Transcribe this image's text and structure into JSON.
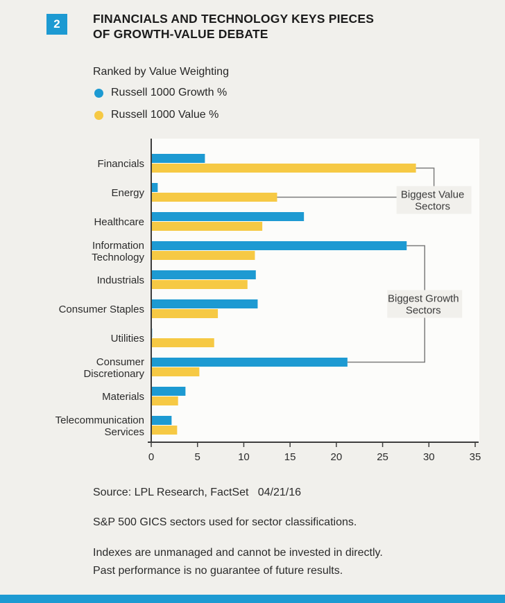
{
  "colors": {
    "accent_blue": "#1d9ad2",
    "value_yellow": "#f6c944",
    "page_background": "#f1f0ec",
    "plot_background": "#fcfcfa",
    "axis": "#3d3d3d",
    "bracket": "#7c7c7c"
  },
  "page": {
    "figure_number": "2",
    "title_line1": "FINANCIALS AND TECHNOLOGY KEYS PIECES",
    "title_line2": "OF GROWTH-VALUE DEBATE",
    "subtitle": "Ranked by Value Weighting"
  },
  "legend": [
    {
      "label": "Russell 1000 Growth %",
      "color": "#1d9ad2"
    },
    {
      "label": "Russell 1000 Value %",
      "color": "#f6c944"
    }
  ],
  "footer": {
    "source": "Source: LPL Research, FactSet   04/21/16",
    "note1": "S&P 500 GICS sectors used for sector classifications.",
    "note2": "Indexes are unmanaged and cannot be invested in directly.",
    "note3": "Past performance is no guarantee of future results."
  },
  "chart_data": {
    "type": "bar",
    "orientation": "horizontal",
    "title": "Ranked by Value Weighting",
    "xlabel": "",
    "ylabel": "",
    "xlim": [
      0,
      35
    ],
    "xticks": [
      0,
      5,
      10,
      15,
      20,
      25,
      30,
      35
    ],
    "grid": false,
    "legend_position": "top-left",
    "categories": [
      "Financials",
      "Energy",
      "Healthcare",
      "Information\nTechnology",
      "Industrials",
      "Consumer Staples",
      "Utilities",
      "Consumer\nDiscretionary",
      "Materials",
      "Telecommunication\nServices"
    ],
    "series": [
      {
        "name": "Russell 1000 Growth %",
        "color": "#1d9ad2",
        "values": [
          5.8,
          0.7,
          16.5,
          27.6,
          11.3,
          11.5,
          0.1,
          21.2,
          3.7,
          2.2
        ]
      },
      {
        "name": "Russell 1000 Value %",
        "color": "#f6c944",
        "values": [
          28.6,
          13.6,
          12.0,
          11.2,
          10.4,
          7.2,
          6.8,
          5.2,
          2.9,
          2.8
        ]
      }
    ],
    "annotations": [
      {
        "label": "Biggest Value\nSectors",
        "series": "value",
        "from": "Financials",
        "to": "Energy"
      },
      {
        "label": "Biggest Growth\nSectors",
        "series": "growth",
        "from": "Information Technology",
        "to": "Consumer Discretionary"
      }
    ]
  }
}
